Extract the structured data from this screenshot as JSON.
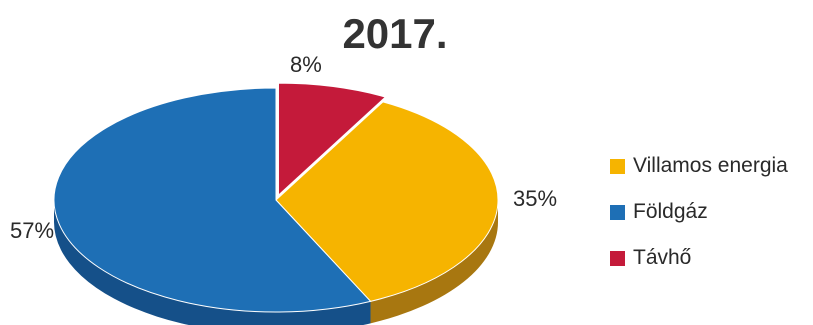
{
  "chart_data": {
    "type": "pie",
    "title": "2017.",
    "three_d": true,
    "start_angle_deg": 0,
    "exploded_slice": "Távhő",
    "slices": [
      {
        "name": "Távhő",
        "value": 8,
        "label": "8%",
        "color": "#c41a3a",
        "color_dark": "#7a1034"
      },
      {
        "name": "Villamos energia",
        "value": 35,
        "label": "35%",
        "color": "#f6b400",
        "color_dark": "#a87710"
      },
      {
        "name": "Földgáz",
        "value": 57,
        "label": "57%",
        "color": "#1e6fb5",
        "color_dark": "#155089"
      }
    ],
    "legend": {
      "placement": "right",
      "items": [
        {
          "label": "Villamos energia",
          "color": "#f6b400"
        },
        {
          "label": "Földgáz",
          "color": "#1e6fb5"
        },
        {
          "label": "Távhő",
          "color": "#c41a3a"
        }
      ]
    }
  }
}
